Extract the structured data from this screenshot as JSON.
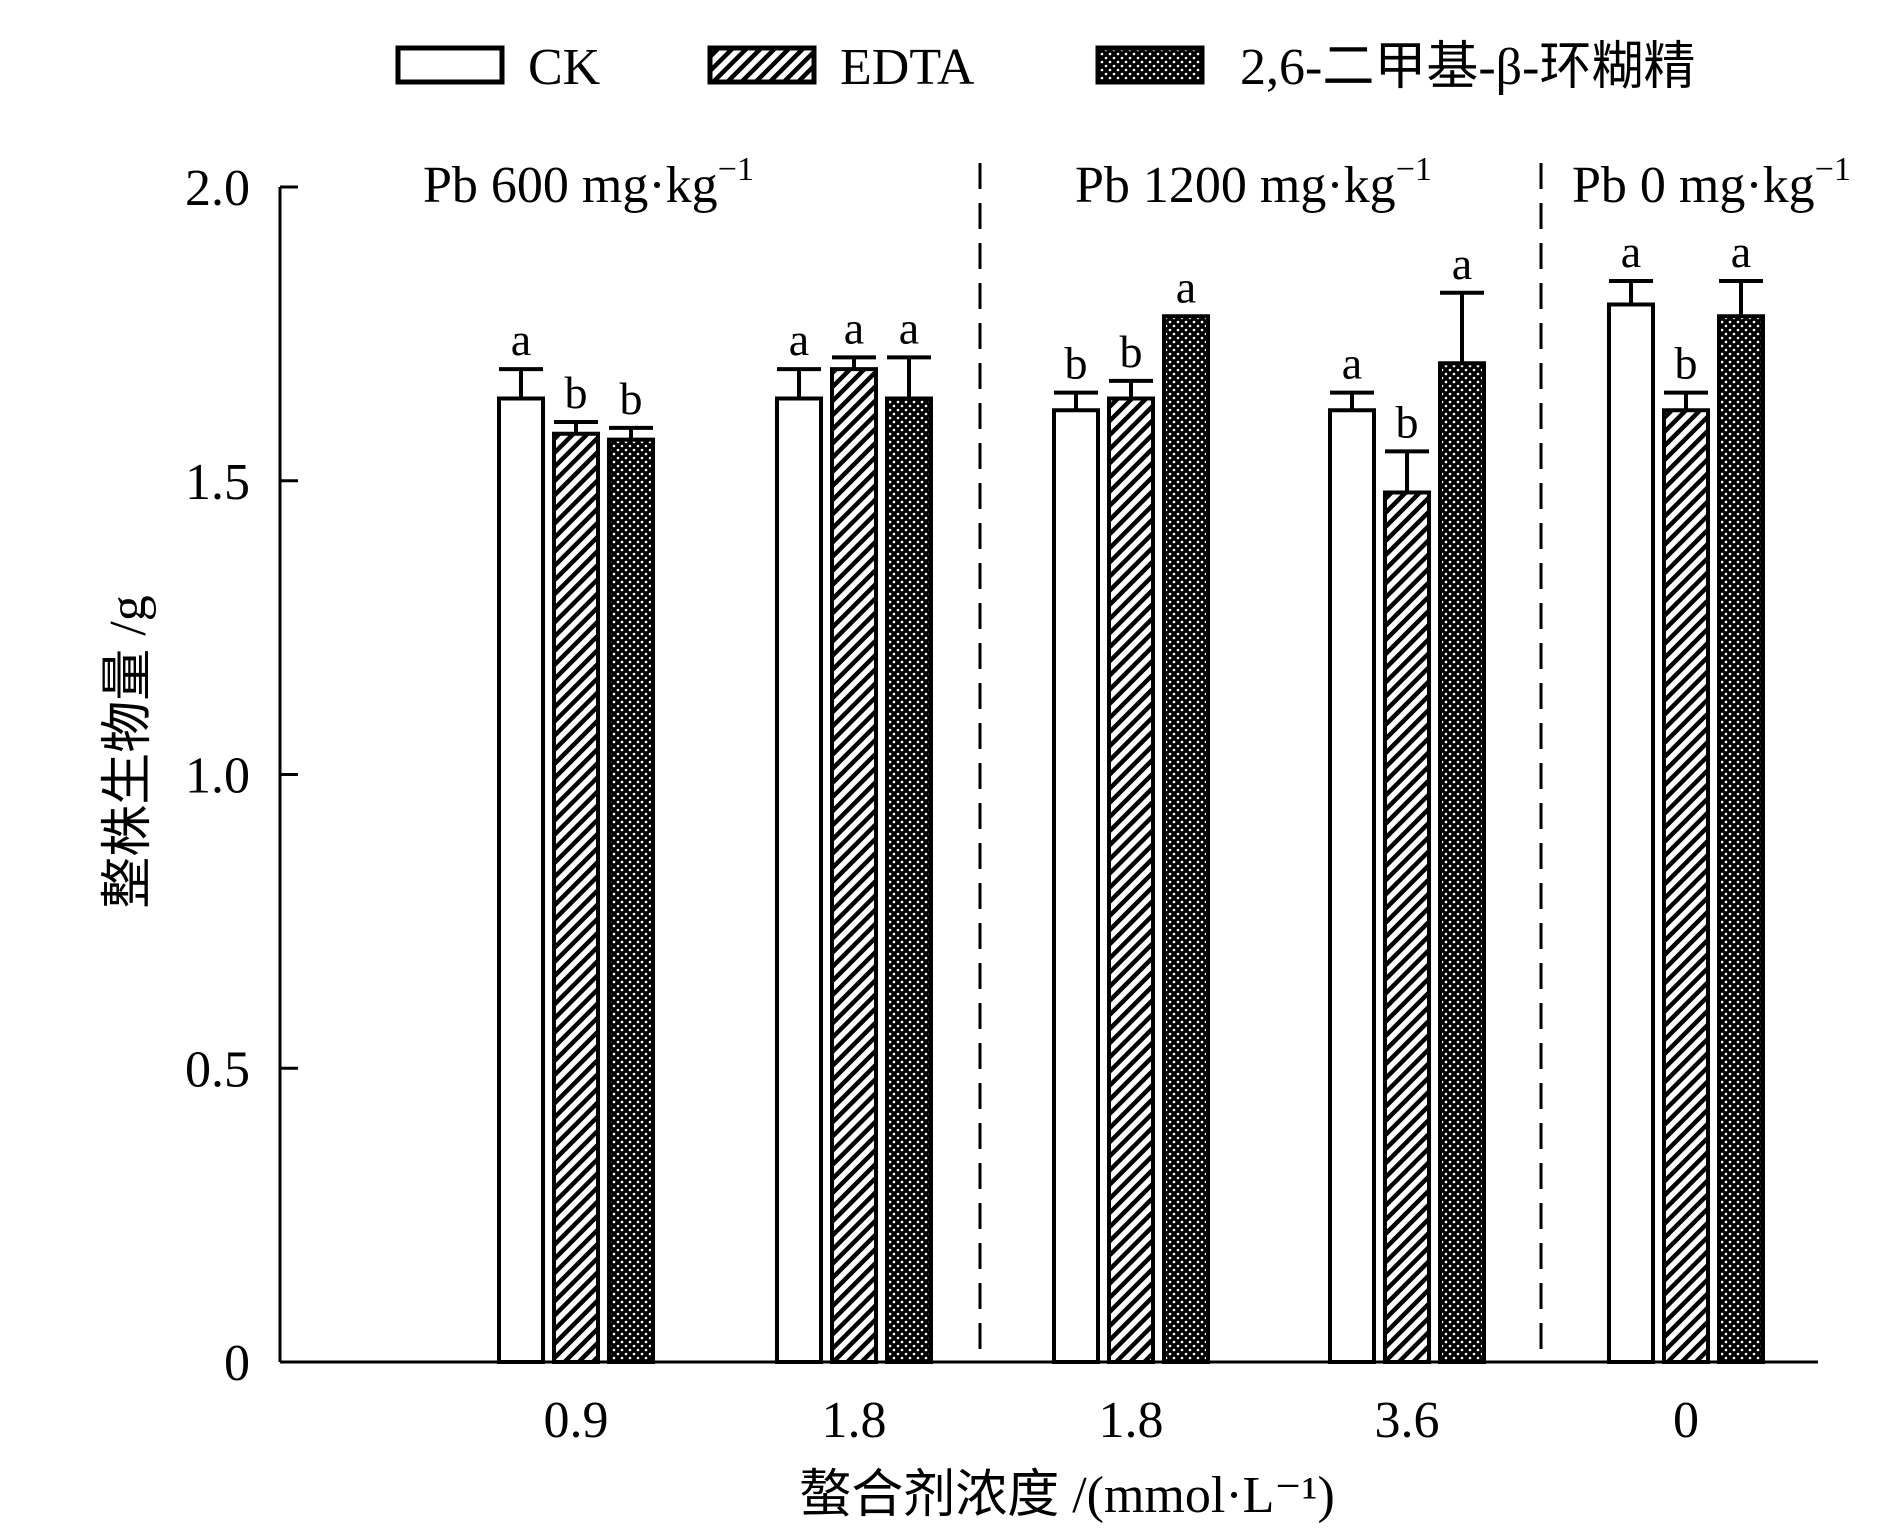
{
  "chart_data": {
    "type": "bar",
    "title": "",
    "xlabel": "螯合剂浓度 /(mmol·L⁻¹)",
    "ylabel": "整株生物量 /g",
    "ylim": [
      0,
      2.0
    ],
    "yticks": [
      "0",
      "0.5",
      "1.0",
      "1.5",
      "2.0"
    ],
    "ytick_values": [
      0,
      0.5,
      1.0,
      1.5,
      2.0
    ],
    "grid": false,
    "legend_position": "top",
    "categories": [
      "0.9",
      "1.8",
      "1.8",
      "3.6",
      "0"
    ],
    "groups": [
      {
        "label_main": "Pb 600 mg·kg",
        "label_sup": "−1",
        "categories": [
          0,
          1
        ]
      },
      {
        "label_main": "Pb 1200 mg·kg",
        "label_sup": "−1",
        "categories": [
          2,
          3
        ]
      },
      {
        "label_main": "Pb 0 mg·kg",
        "label_sup": "−1",
        "categories": [
          4
        ]
      }
    ],
    "series": [
      {
        "name": "CK",
        "pattern": "white",
        "values": [
          1.64,
          1.64,
          1.62,
          1.62,
          1.8
        ],
        "errors": [
          0.05,
          0.05,
          0.03,
          0.03,
          0.04
        ],
        "letters": [
          "a",
          "a",
          "b",
          "a",
          "a"
        ]
      },
      {
        "name": "EDTA",
        "pattern": "hatch",
        "values": [
          1.58,
          1.69,
          1.64,
          1.48,
          1.62
        ],
        "errors": [
          0.02,
          0.02,
          0.03,
          0.07,
          0.03
        ],
        "letters": [
          "b",
          "a",
          "b",
          "b",
          "b"
        ]
      },
      {
        "name": "2,6-二甲基-β-环糊精",
        "pattern": "dots",
        "values": [
          1.57,
          1.64,
          1.78,
          1.7,
          1.78
        ],
        "errors": [
          0.02,
          0.07,
          0.0,
          0.12,
          0.06
        ],
        "letters": [
          "b",
          "a",
          "a",
          "a",
          "a"
        ]
      }
    ]
  },
  "colors": {
    "ink": "#000000",
    "fill_white": "#ffffff"
  }
}
